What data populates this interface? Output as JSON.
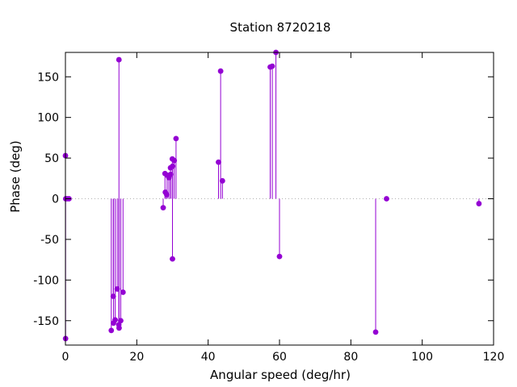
{
  "chart_data": {
    "type": "scatter",
    "style": "impulses-with-points",
    "title": "Station 8720218",
    "xlabel": "Angular speed (deg/hr)",
    "ylabel": "Phase (deg)",
    "xlim": [
      0,
      120
    ],
    "ylim": [
      -180,
      180
    ],
    "xticks": [
      0,
      20,
      40,
      60,
      80,
      100,
      120
    ],
    "yticks": [
      -150,
      -100,
      -50,
      0,
      50,
      100,
      150
    ],
    "zero_line": true,
    "grid": false,
    "legend": "none",
    "series": [
      {
        "color": "#9400d3",
        "points": [
          [
            0.0,
            53
          ],
          [
            0.04,
            -172
          ],
          [
            0.08,
            0
          ],
          [
            0.5,
            0
          ],
          [
            1.0,
            0
          ],
          [
            12.85,
            -162
          ],
          [
            13.4,
            -120
          ],
          [
            13.47,
            -153
          ],
          [
            13.94,
            -149
          ],
          [
            14.5,
            -111
          ],
          [
            14.96,
            -155
          ],
          [
            15.0,
            171
          ],
          [
            15.04,
            -159
          ],
          [
            15.5,
            -150
          ],
          [
            16.14,
            -115
          ],
          [
            27.4,
            -11
          ],
          [
            27.9,
            31
          ],
          [
            28.0,
            8
          ],
          [
            28.4,
            5
          ],
          [
            28.5,
            29
          ],
          [
            29.0,
            26
          ],
          [
            29.45,
            38
          ],
          [
            29.5,
            30
          ],
          [
            29.96,
            49
          ],
          [
            30.0,
            -74
          ],
          [
            30.04,
            40
          ],
          [
            30.5,
            47
          ],
          [
            31.0,
            74
          ],
          [
            42.9,
            45
          ],
          [
            43.5,
            157
          ],
          [
            44.0,
            22
          ],
          [
            57.4,
            162
          ],
          [
            57.97,
            163
          ],
          [
            59.0,
            180
          ],
          [
            60.0,
            -71
          ],
          [
            86.95,
            -164
          ],
          [
            90.0,
            0
          ],
          [
            115.9,
            -6
          ]
        ]
      }
    ]
  }
}
